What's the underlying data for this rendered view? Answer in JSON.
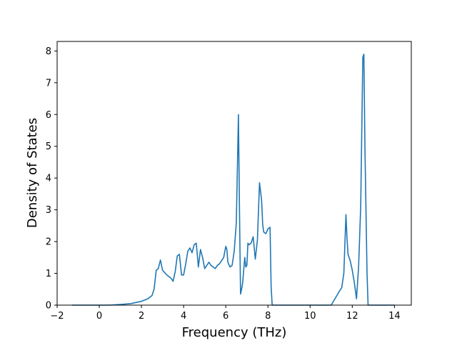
{
  "chart_data": {
    "type": "line",
    "xlabel": "Frequency (THz)",
    "ylabel": "Density of States",
    "xlim": [
      -2,
      14.8
    ],
    "ylim": [
      0,
      8.3
    ],
    "x_ticks": [
      -2,
      0,
      2,
      4,
      6,
      8,
      10,
      12,
      14
    ],
    "x_tick_labels": [
      "−2",
      "0",
      "2",
      "4",
      "6",
      "8",
      "10",
      "12",
      "14"
    ],
    "y_ticks": [
      0,
      1,
      2,
      3,
      4,
      5,
      6,
      7,
      8
    ],
    "y_tick_labels": [
      "0",
      "1",
      "2",
      "3",
      "4",
      "5",
      "6",
      "7",
      "8"
    ],
    "grid": false,
    "legend": "none",
    "line_color": "#1f77b4",
    "series": [
      {
        "x": [
          -1.3,
          -1.0,
          -0.5,
          0.0,
          0.5,
          1.0,
          1.5,
          2.0,
          2.3,
          2.5,
          2.6,
          2.7,
          2.8,
          2.9,
          3.0,
          3.2,
          3.4,
          3.5,
          3.6,
          3.7,
          3.8,
          3.9,
          4.0,
          4.1,
          4.2,
          4.3,
          4.4,
          4.5,
          4.6,
          4.7,
          4.8,
          4.9,
          5.0,
          5.1,
          5.2,
          5.3,
          5.4,
          5.5,
          5.6,
          5.7,
          5.8,
          5.9,
          6.0,
          6.05,
          6.1,
          6.2,
          6.3,
          6.4,
          6.5,
          6.6,
          6.65,
          6.7,
          6.75,
          6.8,
          6.9,
          6.95,
          7.0,
          7.05,
          7.1,
          7.2,
          7.3,
          7.4,
          7.5,
          7.6,
          7.7,
          7.75,
          7.8,
          7.9,
          8.0,
          8.1,
          8.15,
          8.2,
          8.25,
          8.3,
          9.0,
          10.0,
          11.0,
          11.4,
          11.5,
          11.6,
          11.7,
          11.75,
          11.8,
          11.9,
          12.0,
          12.1,
          12.2,
          12.3,
          12.4,
          12.5,
          12.55,
          12.6,
          12.7,
          12.75,
          12.8,
          13.0,
          14.0
        ],
        "y": [
          0.0,
          0.0,
          0.0,
          0.0,
          0.0,
          0.02,
          0.05,
          0.12,
          0.2,
          0.3,
          0.5,
          1.1,
          1.15,
          1.42,
          1.1,
          0.95,
          0.85,
          0.75,
          1.05,
          1.55,
          1.6,
          0.95,
          0.95,
          1.3,
          1.7,
          1.8,
          1.65,
          1.9,
          1.95,
          1.2,
          1.75,
          1.5,
          1.15,
          1.25,
          1.35,
          1.25,
          1.2,
          1.15,
          1.25,
          1.3,
          1.4,
          1.5,
          1.85,
          1.75,
          1.35,
          1.2,
          1.25,
          1.7,
          2.6,
          6.0,
          3.0,
          0.35,
          0.5,
          0.7,
          1.5,
          1.2,
          1.25,
          1.95,
          1.9,
          1.95,
          2.15,
          1.45,
          2.05,
          3.85,
          3.3,
          2.55,
          2.3,
          2.25,
          2.4,
          2.45,
          0.6,
          0.0,
          0.0,
          0.0,
          0.0,
          0.0,
          0.0,
          0.45,
          0.55,
          1.0,
          2.85,
          2.1,
          1.6,
          1.4,
          1.1,
          0.7,
          0.2,
          1.2,
          3.1,
          7.8,
          7.9,
          5.0,
          1.0,
          0.0,
          0.0,
          0.0,
          0.0
        ]
      }
    ]
  }
}
